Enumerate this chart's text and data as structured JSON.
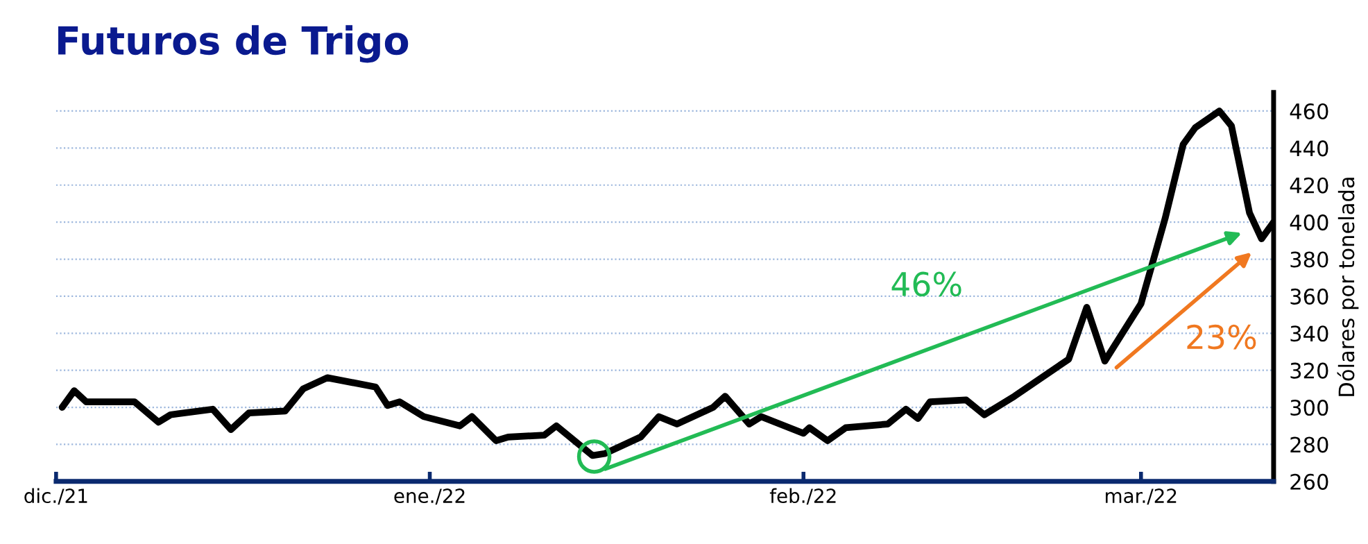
{
  "chart_data": {
    "type": "line",
    "title": "Futuros de Trigo",
    "y2label": "Dólares por tonelada",
    "x": [
      "2021-12-01T12:00",
      "2021-12-02T12:00",
      "2021-12-03T12:00",
      "2021-12-06T12:00",
      "2021-12-07T12:00",
      "2021-12-09T12:00",
      "2021-12-10T12:00",
      "2021-12-14",
      "2021-12-15T12:00",
      "2021-12-17",
      "2021-12-20",
      "2021-12-21T12:00",
      "2021-12-23T12:00",
      "2021-12-27T12:00",
      "2021-12-28T12:00",
      "2021-12-29T12:00",
      "2021-12-31T12:00",
      "2022-01-03T12:00",
      "2022-01-04T12:00",
      "2022-01-06T12:00",
      "2022-01-07T12:00",
      "2022-01-10T12:00",
      "2022-01-11T12:00",
      "2022-01-14T12:00",
      "2022-01-15T12:00",
      "2022-01-18T12:00",
      "2022-01-20",
      "2022-01-21T12:00",
      "2022-01-24T12:00",
      "2022-01-25T12:00",
      "2022-01-27T12:00",
      "2022-01-28T12:00",
      "2022-02-01",
      "2022-02-01T12:00",
      "2022-02-03",
      "2022-02-04T12:00",
      "2022-02-08",
      "2022-02-09T12:00",
      "2022-02-10T12:00",
      "2022-02-11T12:00",
      "2022-02-14T12:00",
      "2022-02-16",
      "2022-02-18T12:00",
      "2022-02-23",
      "2022-02-24T12:00",
      "2022-02-26",
      "2022-03-01",
      "2022-03-03",
      "2022-03-04T12:00",
      "2022-03-05T12:00",
      "2022-03-07T12:00",
      "2022-03-08T12:00",
      "2022-03-10",
      "2022-03-11",
      "2022-03-12"
    ],
    "series": [
      {
        "color": "#000000",
        "axis": "y2",
        "values": [
          300,
          309,
          303,
          303,
          303,
          292,
          296,
          299,
          288,
          297,
          298,
          310,
          316,
          311,
          301,
          303,
          295,
          290,
          295,
          282,
          284,
          285,
          290,
          274,
          275,
          284,
          295,
          291,
          300,
          306,
          291,
          295,
          286,
          289,
          282,
          289,
          291,
          299,
          294,
          303,
          304,
          296,
          306,
          326,
          354,
          325,
          356,
          402,
          442,
          451,
          460,
          452,
          405,
          391,
          400
        ]
      }
    ],
    "xlim": [
      "2021-12-01",
      "2022-03-12"
    ],
    "xticks": [
      {
        "value": "2021-12-01",
        "label": "dic./21"
      },
      {
        "value": "2022-01-01",
        "label": "ene./22"
      },
      {
        "value": "2022-02-01",
        "label": "feb./22"
      },
      {
        "value": "2022-03-01",
        "label": "mar./22"
      }
    ],
    "y2lim": [
      260,
      470
    ],
    "y2ticks": [
      260,
      280,
      300,
      320,
      340,
      360,
      380,
      400,
      420,
      440,
      460
    ],
    "grid": "y",
    "annotations": [
      "46%",
      "23%"
    ]
  }
}
